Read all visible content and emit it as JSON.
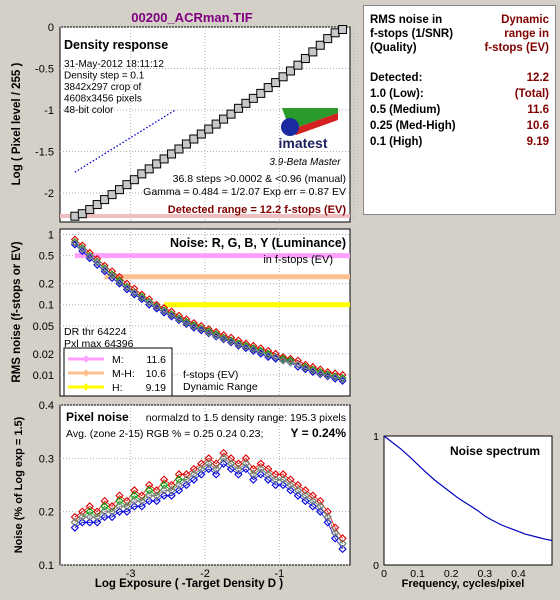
{
  "colors": {
    "background": "#d4d0c8",
    "title": "#800080",
    "panel_value": "#800000",
    "red": "#e00000",
    "green": "#00a000",
    "blue": "#0000e0",
    "luminance": "#808080",
    "band_pink": "#ffa0ff",
    "band_peach": "#ffc090",
    "band_yellow": "#ffff00",
    "spectrum": "#0000c0"
  },
  "title": "00200_ACRman.TIF",
  "summary": {
    "header_left": [
      "RMS noise in",
      "f-stops (1/SNR)",
      "(Quality)"
    ],
    "header_right": [
      "Dynamic",
      "range in",
      "f-stops (EV)"
    ],
    "rows": [
      {
        "label": "Detected:",
        "value": "12.2"
      },
      {
        "label": "1.0  (Low):",
        "value": "(Total)"
      },
      {
        "label": "0.5  (Medium)",
        "value": "11.6"
      },
      {
        "label": "0.25 (Med-High)",
        "value": "10.6"
      },
      {
        "label": "0.1  (High)",
        "value": "9.19"
      }
    ]
  },
  "density_panel": {
    "heading": "Density response",
    "info": [
      "31-May-2012 18:11:12",
      "Density step = 0.1",
      "3842x297 crop of",
      "4608x3456 pixels",
      "48-bit color"
    ],
    "logo_text": "imatest",
    "version": "3.9-Beta  Master",
    "stats_line1": "36.8 steps >0.0002 & <0.96 (manual)",
    "stats_line2": "Gamma = 0.484 = 1/2.07  Exp err = 0.87 EV",
    "detected_range": "Detected range = 12.2 f-stops (EV)",
    "ylabel": "Log ( Pixel level / 255 )"
  },
  "noise_fstop_panel": {
    "heading": "Noise: R, G, B, Y (Luminance)",
    "subheading": "in f-stops (EV)",
    "ylabel": "RMS noise (f-stops or EV)",
    "dr_lines": [
      "DR thr 64224",
      "Pxl max 64396"
    ],
    "legend": [
      {
        "label": "M:",
        "value": "11.6",
        "color": "#ffa0ff"
      },
      {
        "label": "M-H:",
        "value": "10.6",
        "color": "#ffc090"
      },
      {
        "label": "H:",
        "value": "9.19",
        "color": "#ffff00"
      }
    ],
    "legend_caption": [
      "f-stops (EV)",
      "Dynamic Range"
    ]
  },
  "pixel_noise_panel": {
    "heading": "Pixel noise",
    "norm_text": "normalzd to 1.5 density range: 195.3 pixels",
    "avg_text": "Avg. (zone 2-15) RGB % = 0.25  0.24  0.23;",
    "y_text": "Y = 0.24%",
    "ylabel": "Noise (% of Log exp = 1.5)",
    "xlabel": "Log Exposure ( -Target Density D )"
  },
  "spectrum_panel": {
    "heading": "Noise spectrum",
    "xlabel": "Frequency, cycles/pixel"
  },
  "chart_data": [
    {
      "type": "scatter",
      "title": "Density response",
      "ylabel": "Log ( Pixel level / 255 )",
      "xlim": [
        -3.95,
        -0.05
      ],
      "ylim": [
        -2.35,
        0
      ],
      "x_ticks": [
        -3,
        -2,
        -1,
        0
      ],
      "y_ticks": [
        0,
        -0.5,
        -1,
        -1.5,
        -2
      ],
      "y_tick_labels": [
        "0",
        "-0.5",
        "-1",
        "-1.5",
        "-2"
      ],
      "grid": true,
      "series": [
        {
          "style": "square-markers",
          "x": [
            -3.75,
            -3.65,
            -3.55,
            -3.45,
            -3.35,
            -3.25,
            -3.15,
            -3.05,
            -2.95,
            -2.85,
            -2.75,
            -2.65,
            -2.55,
            -2.45,
            -2.35,
            -2.25,
            -2.15,
            -2.05,
            -1.95,
            -1.85,
            -1.75,
            -1.65,
            -1.55,
            -1.45,
            -1.35,
            -1.25,
            -1.15,
            -1.05,
            -0.95,
            -0.85,
            -0.75,
            -0.65,
            -0.55,
            -0.45,
            -0.35,
            -0.25,
            -0.15
          ],
          "y": [
            -2.28,
            -2.25,
            -2.2,
            -2.14,
            -2.08,
            -2.02,
            -1.96,
            -1.9,
            -1.84,
            -1.77,
            -1.71,
            -1.65,
            -1.59,
            -1.53,
            -1.47,
            -1.41,
            -1.35,
            -1.29,
            -1.23,
            -1.17,
            -1.11,
            -1.05,
            -0.98,
            -0.92,
            -0.86,
            -0.8,
            -0.73,
            -0.67,
            -0.6,
            -0.53,
            -0.46,
            -0.38,
            -0.3,
            -0.22,
            -0.14,
            -0.07,
            -0.03
          ]
        },
        {
          "style": "dotted-fit",
          "x": [
            -3.75,
            -2.4
          ],
          "y": [
            -1.75,
            -1.0
          ]
        }
      ]
    },
    {
      "type": "scatter",
      "title": "Noise: R, G, B, Y (Luminance)",
      "ylabel": "RMS noise (f-stops or EV)",
      "yscale": "log",
      "xlim": [
        -3.95,
        -0.05
      ],
      "ylim": [
        0.005,
        1.2
      ],
      "y_ticks": [
        1,
        0.5,
        0.2,
        0.1,
        0.05,
        0.02,
        0.01
      ],
      "y_tick_labels": [
        "1",
        "0.5",
        "0.2",
        "0.1",
        "0.05",
        "0.02",
        "0.01"
      ],
      "bands": [
        {
          "name": "M",
          "y": 0.5,
          "x_start": -3.75,
          "color": "#ffa0ff"
        },
        {
          "name": "M-H",
          "y": 0.25,
          "x_start": -3.35,
          "color": "#ffc090"
        },
        {
          "name": "H",
          "y": 0.1,
          "x_start": -2.55,
          "color": "#ffff00"
        }
      ],
      "x": [
        -3.75,
        -3.65,
        -3.55,
        -3.45,
        -3.35,
        -3.25,
        -3.15,
        -3.05,
        -2.95,
        -2.85,
        -2.75,
        -2.65,
        -2.55,
        -2.45,
        -2.35,
        -2.25,
        -2.15,
        -2.05,
        -1.95,
        -1.85,
        -1.75,
        -1.65,
        -1.55,
        -1.45,
        -1.35,
        -1.25,
        -1.15,
        -1.05,
        -0.95,
        -0.85,
        -0.75,
        -0.65,
        -0.55,
        -0.45,
        -0.35,
        -0.25,
        -0.15
      ],
      "series": [
        {
          "name": "R",
          "color": "#e00000",
          "values": [
            0.85,
            0.7,
            0.55,
            0.45,
            0.36,
            0.3,
            0.25,
            0.2,
            0.17,
            0.14,
            0.12,
            0.1,
            0.09,
            0.08,
            0.07,
            0.062,
            0.055,
            0.05,
            0.045,
            0.041,
            0.037,
            0.034,
            0.031,
            0.028,
            0.026,
            0.024,
            0.022,
            0.02,
            0.018,
            0.017,
            0.016,
            0.014,
            0.013,
            0.012,
            0.011,
            0.0105,
            0.01
          ]
        },
        {
          "name": "G",
          "color": "#00a000",
          "values": [
            0.78,
            0.64,
            0.5,
            0.41,
            0.33,
            0.27,
            0.22,
            0.18,
            0.15,
            0.13,
            0.11,
            0.095,
            0.083,
            0.073,
            0.064,
            0.057,
            0.051,
            0.046,
            0.042,
            0.038,
            0.034,
            0.031,
            0.028,
            0.026,
            0.024,
            0.022,
            0.02,
            0.018,
            0.017,
            0.016,
            0.014,
            0.013,
            0.012,
            0.011,
            0.0102,
            0.0095,
            0.009
          ]
        },
        {
          "name": "B",
          "color": "#0000e0",
          "values": [
            0.72,
            0.58,
            0.46,
            0.37,
            0.3,
            0.24,
            0.2,
            0.165,
            0.14,
            0.12,
            0.1,
            0.088,
            0.077,
            0.068,
            0.06,
            0.053,
            0.047,
            0.043,
            0.039,
            0.035,
            0.032,
            0.029,
            0.026,
            0.024,
            0.022,
            0.02,
            0.018,
            0.017,
            0.016,
            0.015,
            0.013,
            0.012,
            0.011,
            0.0102,
            0.0095,
            0.0088,
            0.0082
          ]
        },
        {
          "name": "Y",
          "color": "#808080",
          "values": [
            0.76,
            0.62,
            0.49,
            0.4,
            0.32,
            0.26,
            0.21,
            0.175,
            0.148,
            0.125,
            0.107,
            0.093,
            0.081,
            0.071,
            0.062,
            0.055,
            0.049,
            0.045,
            0.04,
            0.036,
            0.033,
            0.03,
            0.027,
            0.025,
            0.023,
            0.021,
            0.019,
            0.018,
            0.016,
            0.015,
            0.014,
            0.0125,
            0.0115,
            0.0105,
            0.0098,
            0.0092,
            0.0086
          ]
        }
      ]
    },
    {
      "type": "scatter",
      "title": "Pixel noise",
      "xlabel": "Log Exposure ( -Target Density D )",
      "ylabel": "Noise (% of Log exp = 1.5)",
      "xlim": [
        -3.95,
        -0.05
      ],
      "ylim": [
        0.1,
        0.4
      ],
      "x_ticks": [
        -3,
        -2,
        -1
      ],
      "y_ticks": [
        0.1,
        0.2,
        0.3,
        0.4
      ],
      "y_tick_labels": [
        "0.1",
        "0.2",
        "0.3",
        "0.4"
      ],
      "x": [
        -3.75,
        -3.65,
        -3.55,
        -3.45,
        -3.35,
        -3.25,
        -3.15,
        -3.05,
        -2.95,
        -2.85,
        -2.75,
        -2.65,
        -2.55,
        -2.45,
        -2.35,
        -2.25,
        -2.15,
        -2.05,
        -1.95,
        -1.85,
        -1.75,
        -1.65,
        -1.55,
        -1.45,
        -1.35,
        -1.25,
        -1.15,
        -1.05,
        -0.95,
        -0.85,
        -0.75,
        -0.65,
        -0.55,
        -0.45,
        -0.35,
        -0.25,
        -0.15
      ],
      "series": [
        {
          "name": "R",
          "color": "#e00000",
          "values": [
            0.19,
            0.2,
            0.21,
            0.2,
            0.22,
            0.21,
            0.23,
            0.22,
            0.24,
            0.23,
            0.25,
            0.24,
            0.26,
            0.25,
            0.27,
            0.27,
            0.28,
            0.29,
            0.3,
            0.29,
            0.31,
            0.3,
            0.29,
            0.3,
            0.28,
            0.29,
            0.28,
            0.27,
            0.27,
            0.26,
            0.25,
            0.24,
            0.23,
            0.22,
            0.2,
            0.17,
            0.15
          ]
        },
        {
          "name": "G",
          "color": "#00a000",
          "values": [
            0.18,
            0.19,
            0.2,
            0.19,
            0.21,
            0.2,
            0.22,
            0.21,
            0.23,
            0.22,
            0.24,
            0.23,
            0.25,
            0.24,
            0.26,
            0.26,
            0.27,
            0.28,
            0.29,
            0.28,
            0.3,
            0.29,
            0.28,
            0.29,
            0.27,
            0.28,
            0.27,
            0.26,
            0.26,
            0.25,
            0.24,
            0.23,
            0.22,
            0.21,
            0.19,
            0.16,
            0.14
          ]
        },
        {
          "name": "B",
          "color": "#0000e0",
          "values": [
            0.17,
            0.18,
            0.18,
            0.18,
            0.19,
            0.19,
            0.2,
            0.2,
            0.21,
            0.21,
            0.22,
            0.22,
            0.23,
            0.23,
            0.24,
            0.25,
            0.26,
            0.27,
            0.28,
            0.27,
            0.29,
            0.28,
            0.27,
            0.28,
            0.26,
            0.27,
            0.26,
            0.25,
            0.25,
            0.24,
            0.23,
            0.22,
            0.21,
            0.2,
            0.18,
            0.15,
            0.13
          ]
        },
        {
          "name": "Y",
          "color": "#808080",
          "values": [
            0.18,
            0.19,
            0.19,
            0.19,
            0.2,
            0.2,
            0.21,
            0.21,
            0.22,
            0.22,
            0.23,
            0.23,
            0.24,
            0.24,
            0.25,
            0.26,
            0.27,
            0.28,
            0.29,
            0.28,
            0.3,
            0.29,
            0.28,
            0.29,
            0.27,
            0.28,
            0.27,
            0.26,
            0.26,
            0.25,
            0.24,
            0.23,
            0.22,
            0.21,
            0.19,
            0.16,
            0.14
          ]
        }
      ]
    },
    {
      "type": "line",
      "title": "Noise spectrum",
      "xlabel": "Frequency, cycles/pixel",
      "xlim": [
        0,
        0.5
      ],
      "ylim": [
        0,
        1
      ],
      "x_ticks": [
        0,
        0.1,
        0.2,
        0.3,
        0.4
      ],
      "y_ticks": [
        0,
        1
      ],
      "series": [
        {
          "color": "#0000c0",
          "x": [
            0,
            0.02,
            0.05,
            0.08,
            0.1,
            0.12,
            0.15,
            0.18,
            0.2,
            0.22,
            0.25,
            0.28,
            0.3,
            0.32,
            0.35,
            0.38,
            0.4,
            0.42,
            0.45,
            0.48,
            0.5
          ],
          "y": [
            1.0,
            0.96,
            0.9,
            0.83,
            0.78,
            0.73,
            0.66,
            0.6,
            0.56,
            0.52,
            0.47,
            0.42,
            0.38,
            0.35,
            0.31,
            0.28,
            0.26,
            0.24,
            0.22,
            0.2,
            0.19
          ]
        }
      ]
    }
  ]
}
